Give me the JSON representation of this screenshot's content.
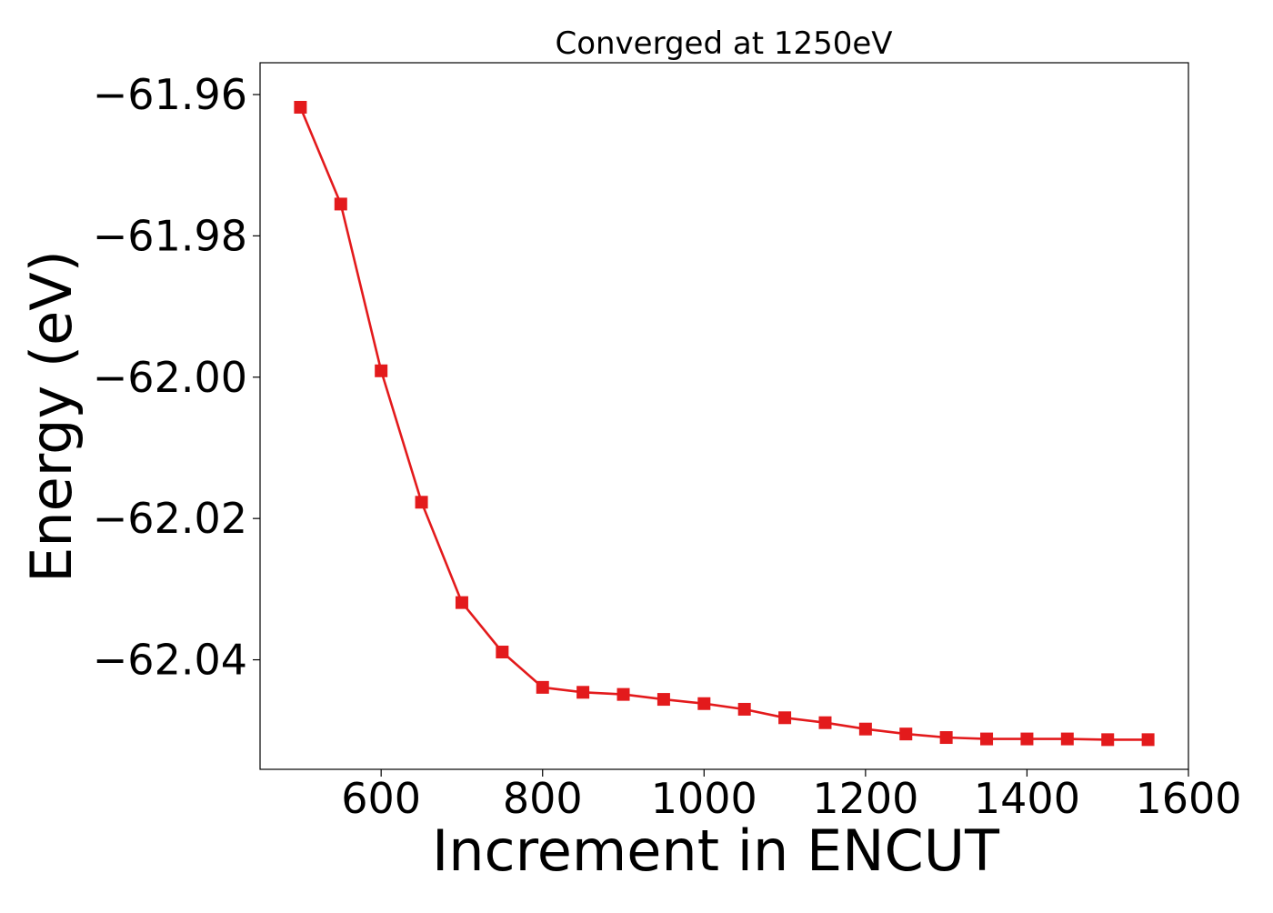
{
  "chart_data": {
    "type": "line",
    "title": "Converged at 1250eV",
    "xlabel": "Increment in ENCUT",
    "ylabel": "Energy (eV)",
    "xlim": [
      450,
      1600
    ],
    "ylim": [
      -62.0555,
      -61.9555
    ],
    "xticks": [
      600,
      800,
      1000,
      1200,
      1400,
      1600
    ],
    "yticks": [
      -61.96,
      -61.98,
      -62.0,
      -62.02,
      -62.04
    ],
    "ytick_labels": [
      "−61.96",
      "−61.98",
      "−62.00",
      "−62.02",
      "−62.04"
    ],
    "grid": false,
    "series": [
      {
        "color": "#e31a1c",
        "marker": "square",
        "x": [
          500,
          550,
          600,
          650,
          700,
          750,
          800,
          850,
          900,
          950,
          1000,
          1050,
          1100,
          1150,
          1200,
          1250,
          1300,
          1350,
          1400,
          1450,
          1500,
          1550
        ],
        "y": [
          -61.9618,
          -61.9755,
          -61.9991,
          -62.0177,
          -62.0319,
          -62.0389,
          -62.0439,
          -62.0446,
          -62.0449,
          -62.0456,
          -62.0462,
          -62.047,
          -62.0482,
          -62.0489,
          -62.0498,
          -62.0505,
          -62.051,
          -62.0512,
          -62.0512,
          -62.0512,
          -62.0513,
          -62.0513
        ]
      }
    ]
  }
}
